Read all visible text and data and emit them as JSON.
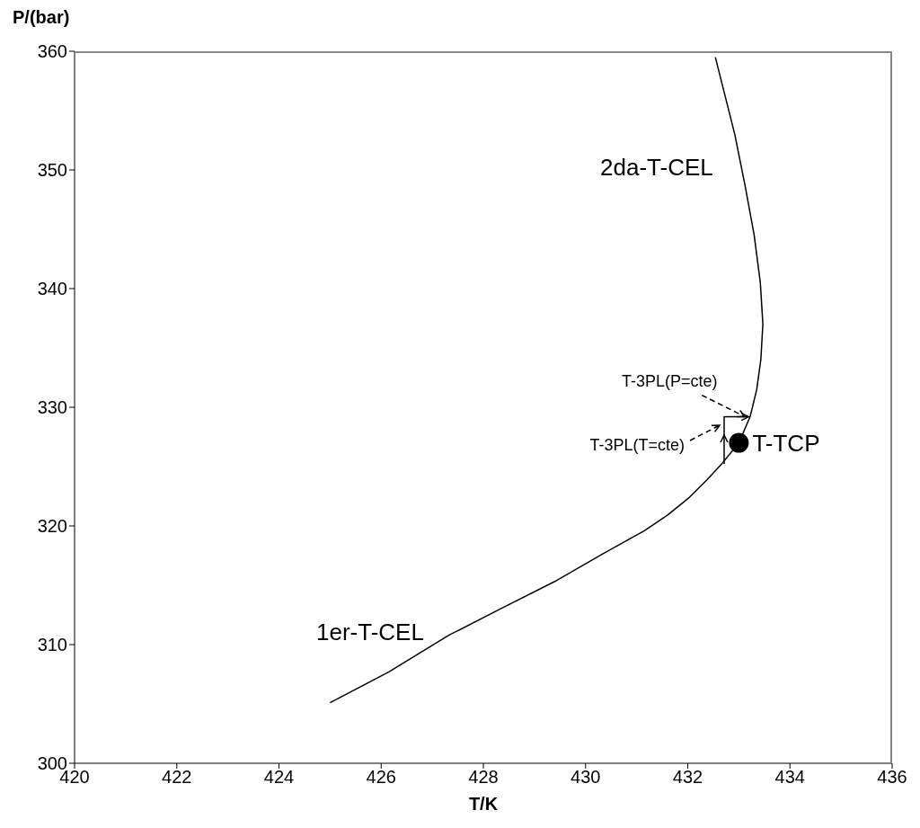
{
  "chart_data": {
    "type": "line",
    "xlabel": "T/K",
    "ylabel": "P/(bar)",
    "xlim": [
      420,
      436
    ],
    "xticks": [
      420,
      422,
      424,
      426,
      428,
      430,
      432,
      434,
      436
    ],
    "ylim": [
      300,
      360
    ],
    "yticks": [
      300,
      310,
      320,
      330,
      340,
      350,
      360
    ],
    "grid": false,
    "legend": false,
    "marker": "none",
    "series": [
      {
        "color": "#000000",
        "x": [
          425.0,
          426.15,
          427.33,
          428.33,
          429.39,
          430.32,
          431.15,
          431.6,
          432.03,
          432.38,
          432.66,
          433.0,
          433.22,
          433.35,
          433.43,
          433.47,
          433.42,
          433.3,
          433.13,
          432.92,
          432.54
        ],
        "values": [
          305.1,
          307.7,
          310.8,
          313.0,
          315.3,
          317.6,
          319.6,
          320.9,
          322.4,
          323.9,
          325.2,
          327.0,
          329.2,
          331.5,
          334.0,
          337.0,
          340.5,
          344.5,
          348.5,
          353.0,
          359.5
        ]
      },
      {
        "type": "scatter",
        "color": "#000000",
        "marker": "circle",
        "x": [
          433.0
        ],
        "values": [
          327.0
        ]
      }
    ],
    "annotations": [
      "2da-T-CEL",
      "1er-T-CEL",
      {
        "text": "T-TCP",
        "x": 433.0,
        "y": 327.0
      },
      {
        "text": "T-3PL(P=cte)",
        "x": 433.19,
        "y": 329.2
      },
      "T-3PL(T=cte)"
    ]
  }
}
